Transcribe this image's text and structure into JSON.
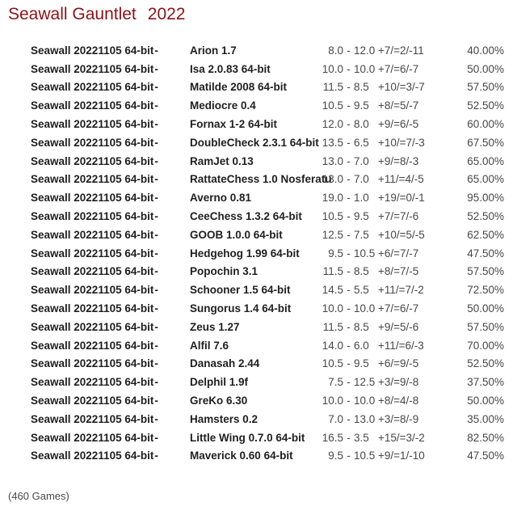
{
  "header": {
    "title": "Seawall Gauntlet",
    "year": "2022"
  },
  "colors": {
    "title_accent": "#8c1318",
    "engine_text": "#1f1f1f",
    "score_text": "#474747",
    "background": "#ffffff"
  },
  "table": {
    "player_separator": "-",
    "score_separator": "-",
    "rows": [
      {
        "player": "Seawall 20221105 64-bit",
        "opponent": "Arion 1.7",
        "score_left": "8.0",
        "score_right": "12.0",
        "wdl": "+7/=2/-11",
        "pct": "40.00%"
      },
      {
        "player": "Seawall 20221105 64-bit",
        "opponent": "Isa 2.0.83 64-bit",
        "score_left": "10.0",
        "score_right": "10.0",
        "wdl": "+7/=6/-7",
        "pct": "50.00%"
      },
      {
        "player": "Seawall 20221105 64-bit",
        "opponent": "Matilde 2008 64-bit",
        "score_left": "11.5",
        "score_right": "8.5",
        "wdl": "+10/=3/-7",
        "pct": "57.50%"
      },
      {
        "player": "Seawall 20221105 64-bit",
        "opponent": "Mediocre 0.4",
        "score_left": "10.5",
        "score_right": "9.5",
        "wdl": "+8/=5/-7",
        "pct": "52.50%"
      },
      {
        "player": "Seawall 20221105 64-bit",
        "opponent": "Fornax 1-2 64-bit",
        "score_left": "12.0",
        "score_right": "8.0",
        "wdl": "+9/=6/-5",
        "pct": "60.00%"
      },
      {
        "player": "Seawall 20221105 64-bit",
        "opponent": "DoubleCheck 2.3.1 64-bit",
        "score_left": "13.5",
        "score_right": "6.5",
        "wdl": "+10/=7/-3",
        "pct": "67.50%"
      },
      {
        "player": "Seawall 20221105 64-bit",
        "opponent": "RamJet 0.13",
        "score_left": "13.0",
        "score_right": "7.0",
        "wdl": "+9/=8/-3",
        "pct": "65.00%"
      },
      {
        "player": "Seawall 20221105 64-bit",
        "opponent": "RattateChess 1.0 Nosferatu",
        "score_left": "13.0",
        "score_right": "7.0",
        "wdl": "+11/=4/-5",
        "pct": "65.00%"
      },
      {
        "player": "Seawall 20221105 64-bit",
        "opponent": "Averno 0.81",
        "score_left": "19.0",
        "score_right": "1.0",
        "wdl": "+19/=0/-1",
        "pct": "95.00%"
      },
      {
        "player": "Seawall 20221105 64-bit",
        "opponent": "CeeChess 1.3.2 64-bit",
        "score_left": "10.5",
        "score_right": "9.5",
        "wdl": "+7/=7/-6",
        "pct": "52.50%"
      },
      {
        "player": "Seawall 20221105 64-bit",
        "opponent": "GOOB 1.0.0 64-bit",
        "score_left": "12.5",
        "score_right": "7.5",
        "wdl": "+10/=5/-5",
        "pct": "62.50%"
      },
      {
        "player": "Seawall 20221105 64-bit",
        "opponent": "Hedgehog 1.99 64-bit",
        "score_left": "9.5",
        "score_right": "10.5",
        "wdl": "+6/=7/-7",
        "pct": "47.50%"
      },
      {
        "player": "Seawall 20221105 64-bit",
        "opponent": "Popochin 3.1",
        "score_left": "11.5",
        "score_right": "8.5",
        "wdl": "+8/=7/-5",
        "pct": "57.50%"
      },
      {
        "player": "Seawall 20221105 64-bit",
        "opponent": "Schooner 1.5 64-bit",
        "score_left": "14.5",
        "score_right": "5.5",
        "wdl": "+11/=7/-2",
        "pct": "72.50%"
      },
      {
        "player": "Seawall 20221105 64-bit",
        "opponent": "Sungorus 1.4 64-bit",
        "score_left": "10.0",
        "score_right": "10.0",
        "wdl": "+7/=6/-7",
        "pct": "50.00%"
      },
      {
        "player": "Seawall 20221105 64-bit",
        "opponent": "Zeus 1.27",
        "score_left": "11.5",
        "score_right": "8.5",
        "wdl": "+9/=5/-6",
        "pct": "57.50%"
      },
      {
        "player": "Seawall 20221105 64-bit",
        "opponent": "Alfil 7.6",
        "score_left": "14.0",
        "score_right": "6.0",
        "wdl": "+11/=6/-3",
        "pct": "70.00%"
      },
      {
        "player": "Seawall 20221105 64-bit",
        "opponent": "Danasah 2.44",
        "score_left": "10.5",
        "score_right": "9.5",
        "wdl": "+6/=9/-5",
        "pct": "52.50%"
      },
      {
        "player": "Seawall 20221105 64-bit",
        "opponent": "Delphil 1.9f",
        "score_left": "7.5",
        "score_right": "12.5",
        "wdl": "+3/=9/-8",
        "pct": "37.50%"
      },
      {
        "player": "Seawall 20221105 64-bit",
        "opponent": "GreKo 6.30",
        "score_left": "10.0",
        "score_right": "10.0",
        "wdl": "+8/=4/-8",
        "pct": "50.00%"
      },
      {
        "player": "Seawall 20221105 64-bit",
        "opponent": "Hamsters 0.2",
        "score_left": "7.0",
        "score_right": "13.0",
        "wdl": "+3/=8/-9",
        "pct": "35.00%"
      },
      {
        "player": "Seawall 20221105 64-bit",
        "opponent": "Little Wing 0.7.0 64-bit",
        "score_left": "16.5",
        "score_right": "3.5",
        "wdl": "+15/=3/-2",
        "pct": "82.50%"
      },
      {
        "player": "Seawall 20221105 64-bit",
        "opponent": "Maverick 0.60 64-bit",
        "score_left": "9.5",
        "score_right": "10.5",
        "wdl": "+9/=1/-10",
        "pct": "47.50%"
      }
    ]
  },
  "footer": {
    "games_label": "(460 Games)"
  }
}
